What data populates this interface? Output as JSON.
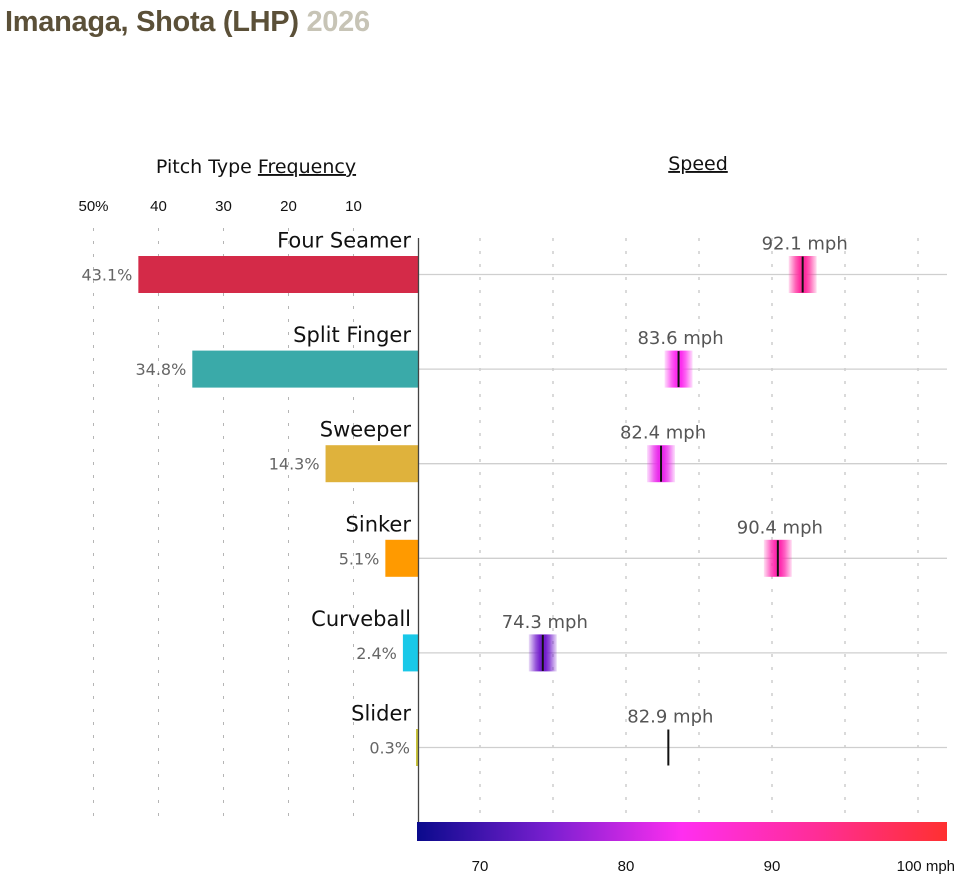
{
  "header": {
    "player": "Imanaga, Shota (LHP)",
    "season": "2026"
  },
  "chart_data": {
    "type": "bar",
    "title": "Imanaga, Shota (LHP) 2026",
    "panels": {
      "frequency": {
        "title_prefix": "Pitch Type ",
        "title_link": "Frequency",
        "xlim": [
          0,
          50
        ],
        "ticks": [
          {
            "value": 50,
            "label": "50%"
          },
          {
            "value": 40,
            "label": "40"
          },
          {
            "value": 30,
            "label": "30"
          },
          {
            "value": 20,
            "label": "20"
          },
          {
            "value": 10,
            "label": "10"
          }
        ],
        "direction": "right-to-left"
      },
      "speed": {
        "title_link": "Speed",
        "xlim": [
          65.7,
          101.9
        ],
        "gridlines": [
          70,
          75,
          80,
          85,
          90,
          95,
          100
        ],
        "ticks": [
          {
            "value": 70,
            "label": "70"
          },
          {
            "value": 80,
            "label": "80"
          },
          {
            "value": 90,
            "label": "90"
          },
          {
            "value": 100,
            "label": "100 mph"
          }
        ],
        "colorscale": [
          "#0a0a8c",
          "#7a1fd0",
          "#ff2ef0",
          "#ff2d98",
          "#ff3030"
        ]
      }
    },
    "categories": [
      "Four Seamer",
      "Split Finger",
      "Sweeper",
      "Sinker",
      "Curveball",
      "Slider"
    ],
    "series": [
      {
        "name": "Frequency",
        "unit": "%",
        "values": [
          43.1,
          34.8,
          14.3,
          5.1,
          2.4,
          0.3
        ],
        "labels": [
          "43.1%",
          "34.8%",
          "14.3%",
          "5.1%",
          "2.4%",
          "0.3%"
        ],
        "colors": [
          "#d42a48",
          "#3aaaa9",
          "#dfb23c",
          "#ff9a00",
          "#19c8e8",
          "#c9c43a"
        ]
      },
      {
        "name": "Speed",
        "unit": "mph",
        "values": [
          92.1,
          83.6,
          82.4,
          90.4,
          74.3,
          82.9
        ],
        "labels": [
          "92.1 mph",
          "83.6 mph",
          "82.4 mph",
          "90.4 mph",
          "74.3 mph",
          "82.9 mph"
        ],
        "show_band": [
          true,
          true,
          true,
          true,
          true,
          false
        ]
      }
    ]
  }
}
